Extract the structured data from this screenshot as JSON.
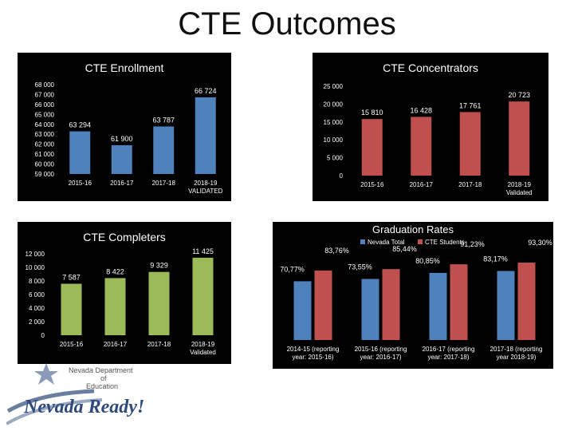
{
  "page": {
    "title": "CTE Outcomes"
  },
  "logo": {
    "line1": "Nevada Department",
    "line2": "of",
    "line3": "Education",
    "wordmark": "Nevada Ready!"
  },
  "colors": {
    "blue": "#4F81BD",
    "green": "#9BBB59",
    "red": "#C0504D",
    "panel_bg": "#000000",
    "text": "#ffffff"
  },
  "chart_data": [
    {
      "id": "enrollment",
      "type": "bar",
      "title": "CTE Enrollment",
      "categories": [
        "2015-16",
        "2016-17",
        "2017-18",
        "2018-19 VALIDATED"
      ],
      "values": [
        63294,
        61900,
        63787,
        66724
      ],
      "value_labels": [
        "63 294",
        "61 900",
        "63 787",
        "66 724"
      ],
      "ylim": [
        59000,
        68000
      ],
      "yticks": [
        68000,
        67000,
        66000,
        65000,
        64000,
        63000,
        62000,
        61000,
        60000,
        59000
      ],
      "ytick_labels": [
        "68 000",
        "67 000",
        "66 000",
        "65 000",
        "64 000",
        "63 000",
        "62 000",
        "61 000",
        "60 000",
        "59 000"
      ],
      "grid": false,
      "color": "#4F81BD"
    },
    {
      "id": "concentrators",
      "type": "bar",
      "title": "CTE Concentrators",
      "categories": [
        "2015-16",
        "2016-17",
        "2017-18",
        "2018-19 Validated"
      ],
      "values": [
        15810,
        16428,
        17761,
        20723
      ],
      "value_labels": [
        "15 810",
        "16 428",
        "17 761",
        "20 723"
      ],
      "ylim": [
        0,
        25000
      ],
      "yticks": [
        25000,
        20000,
        15000,
        10000,
        5000,
        0
      ],
      "ytick_labels": [
        "25 000",
        "20 000",
        "15 000",
        "10 000",
        "5 000",
        "0"
      ],
      "grid": false,
      "color": "#C0504D"
    },
    {
      "id": "completers",
      "type": "bar",
      "title": "CTE Completers",
      "categories": [
        "2015-16",
        "2016-17",
        "2017-18",
        "2018-19 Validated"
      ],
      "values": [
        7587,
        8422,
        9329,
        11425
      ],
      "value_labels": [
        "7 587",
        "8 422",
        "9 329",
        "11 425"
      ],
      "ylim": [
        0,
        12000
      ],
      "yticks": [
        12000,
        10000,
        8000,
        6000,
        4000,
        2000,
        0
      ],
      "ytick_labels": [
        "12 000",
        "10 000",
        "8 000",
        "6 000",
        "4 000",
        "2 000",
        "0"
      ],
      "grid": false,
      "color": "#9BBB59"
    },
    {
      "id": "graduation",
      "type": "bar",
      "title": "Graduation Rates",
      "categories": [
        "2014-15 (reporting year: 2015-16)",
        "2015-16 (reporting year: 2016-17)",
        "2016-17 (reporting year: 2017-18)",
        "2017-18 (reporting year 2018-19)"
      ],
      "series": [
        {
          "name": "Nevada Total",
          "values": [
            70.77,
            73.55,
            80.85,
            83.17
          ],
          "value_labels": [
            "70,77%",
            "73,55%",
            "80,85%",
            "83,17%"
          ],
          "color": "#4F81BD"
        },
        {
          "name": "CTE Students",
          "values": [
            83.76,
            85.44,
            91.23,
            93.3
          ],
          "value_labels": [
            "83,76%",
            "85,44%",
            "91,23%",
            "93,30%"
          ],
          "color": "#C0504D"
        }
      ],
      "legend": "top-center",
      "grid": false
    }
  ]
}
